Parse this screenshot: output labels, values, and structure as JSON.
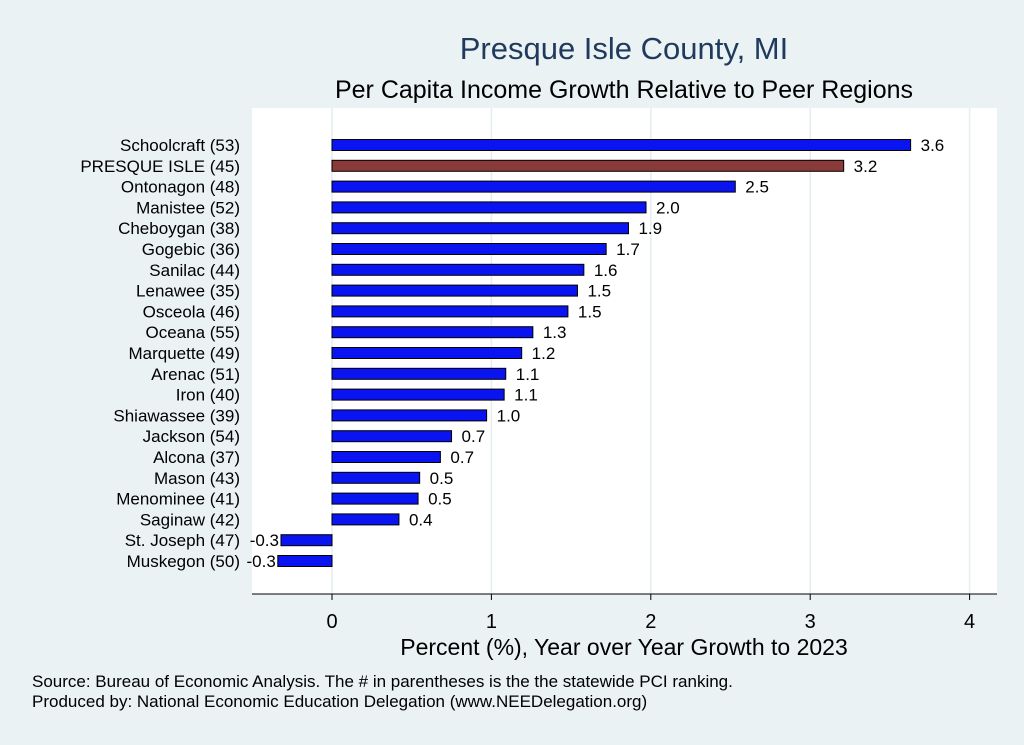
{
  "chart_data": {
    "type": "bar",
    "orientation": "horizontal",
    "title": "Presque Isle County, MI",
    "subtitle": "Per Capita Income Growth Relative to Peer Regions",
    "xlabel": "Percent (%), Year over Year Growth to 2023",
    "ylabel": "",
    "xlim": [
      -0.5,
      4.15
    ],
    "xticks": [
      "0",
      "1",
      "2",
      "3",
      "4"
    ],
    "grid": true,
    "categories": [
      "Schoolcraft (53)",
      "PRESQUE ISLE (45)",
      "Ontonagon (48)",
      "Manistee (52)",
      "Cheboygan (38)",
      "Gogebic (36)",
      "Sanilac (44)",
      "Lenawee (35)",
      "Osceola (46)",
      "Oceana (55)",
      "Marquette (49)",
      "Arenac (51)",
      "Iron (40)",
      "Shiawassee (39)",
      "Jackson (54)",
      "Alcona (37)",
      "Mason (43)",
      "Menominee (41)",
      "Saginaw (42)",
      "St. Joseph (47)",
      "Muskegon (50)"
    ],
    "values": [
      3.63,
      3.21,
      2.53,
      1.97,
      1.86,
      1.72,
      1.58,
      1.54,
      1.48,
      1.26,
      1.19,
      1.09,
      1.08,
      0.97,
      0.75,
      0.68,
      0.55,
      0.54,
      0.42,
      -0.32,
      -0.34
    ],
    "data_labels": [
      "3.6",
      "3.2",
      "2.5",
      "2.0",
      "1.9",
      "1.7",
      "1.6",
      "1.5",
      "1.5",
      "1.3",
      "1.2",
      "1.1",
      "1.1",
      "1.0",
      "0.7",
      "0.7",
      "0.5",
      "0.5",
      "0.4",
      "-0.3",
      "-0.3"
    ],
    "highlight_index": 1,
    "colors": {
      "bar": "#0a14f0",
      "highlight": "#8b3a3a",
      "title": "#1f3a5c",
      "background": "#eaf2f3"
    }
  },
  "notes": {
    "source": "Source: Bureau of Economic Analysis. The # in parentheses is the the statewide PCI ranking.",
    "produced": "Produced by: National Economic Education Delegation (www.NEEDelegation.org)"
  }
}
